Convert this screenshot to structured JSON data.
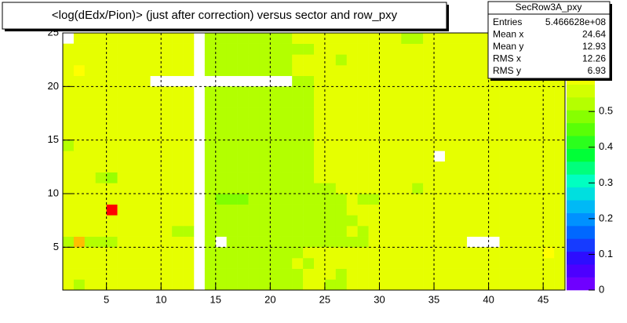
{
  "chart_data": {
    "type": "heatmap",
    "title": "<log(dEdx/Pion)> (just after correction) versus sector and row_pxy",
    "xlim": [
      1,
      47
    ],
    "ylim": [
      1,
      25
    ],
    "zlim": [
      0,
      0.72
    ],
    "xticks": [
      5,
      10,
      15,
      20,
      25,
      30,
      35,
      40,
      45
    ],
    "yticks": [
      5,
      10,
      15,
      20,
      25
    ],
    "zticks": [
      0,
      0.1,
      0.2,
      0.3,
      0.4,
      0.5
    ],
    "grid": true,
    "colormap": [
      {
        "value": 0,
        "color": "#8000ff"
      },
      {
        "value": 0.08,
        "color": "#3300ff"
      },
      {
        "value": 0.16,
        "color": "#0066ff"
      },
      {
        "value": 0.22,
        "color": "#00aaff"
      },
      {
        "value": 0.3,
        "color": "#00ffcc"
      },
      {
        "value": 0.38,
        "color": "#00ff33"
      },
      {
        "value": 0.46,
        "color": "#66ff00"
      },
      {
        "value": 0.52,
        "color": "#b3ff00"
      },
      {
        "value": 0.58,
        "color": "#e6ff00"
      },
      {
        "value": 0.62,
        "color": "#ffff00"
      },
      {
        "value": 0.66,
        "color": "#ffaa00"
      },
      {
        "value": 0.72,
        "color": "#ff0000"
      }
    ],
    "x": [
      1,
      2,
      3,
      4,
      5,
      6,
      7,
      8,
      9,
      10,
      11,
      12,
      13,
      14,
      15,
      16,
      17,
      18,
      19,
      20,
      21,
      22,
      23,
      24,
      25,
      26,
      27,
      28,
      29,
      30,
      31,
      32,
      33,
      34,
      35,
      36,
      37,
      38,
      39,
      40,
      41,
      42,
      43,
      44,
      45,
      46
    ],
    "y": [
      1,
      2,
      3,
      4,
      5,
      6,
      7,
      8,
      9,
      10,
      11,
      12,
      13,
      14,
      15,
      16,
      17,
      18,
      19,
      20,
      21,
      22,
      23,
      24
    ],
    "z": [
      [
        0.58,
        0.52,
        0.58,
        0.58,
        0.58,
        0.58,
        0.58,
        0.58,
        0.58,
        0.58,
        0.58,
        0.58,
        null,
        0.52,
        0.52,
        0.52,
        0.52,
        0.52,
        0.52,
        0.52,
        0.52,
        0.52,
        0.58,
        0.58,
        0.52,
        0.52,
        0.58,
        0.58,
        0.58,
        0.58,
        0.58,
        0.58,
        0.58,
        0.58,
        0.58,
        0.58,
        0.58,
        0.58,
        0.58,
        0.58,
        0.58,
        0.58,
        0.58,
        0.58,
        0.58,
        0.58
      ],
      [
        0.58,
        0.58,
        0.58,
        0.58,
        0.58,
        0.58,
        0.58,
        0.58,
        0.58,
        0.58,
        0.58,
        0.58,
        null,
        0.52,
        0.52,
        0.52,
        0.52,
        0.52,
        0.52,
        0.52,
        0.52,
        0.52,
        0.58,
        0.58,
        0.58,
        0.52,
        0.58,
        0.58,
        0.58,
        0.58,
        0.58,
        0.58,
        0.58,
        0.58,
        0.58,
        0.58,
        0.58,
        0.58,
        0.58,
        0.58,
        0.58,
        0.58,
        0.58,
        0.58,
        0.58,
        0.58
      ],
      [
        0.58,
        0.58,
        0.58,
        0.58,
        0.58,
        0.58,
        0.58,
        0.58,
        0.58,
        0.58,
        0.58,
        0.58,
        null,
        0.52,
        0.52,
        0.52,
        0.52,
        0.52,
        0.52,
        0.52,
        0.52,
        0.58,
        0.52,
        0.58,
        0.58,
        0.58,
        0.58,
        0.58,
        0.58,
        0.58,
        0.58,
        0.58,
        0.58,
        0.58,
        0.58,
        0.58,
        0.58,
        0.58,
        0.58,
        0.58,
        0.58,
        0.58,
        0.58,
        0.58,
        0.58,
        0.58
      ],
      [
        0.58,
        0.58,
        0.58,
        0.58,
        0.58,
        0.58,
        0.58,
        0.58,
        0.58,
        0.58,
        0.58,
        0.58,
        null,
        0.52,
        0.52,
        0.52,
        0.52,
        0.52,
        0.52,
        0.52,
        0.52,
        0.52,
        0.58,
        0.58,
        0.58,
        0.58,
        0.58,
        0.58,
        0.58,
        0.58,
        0.58,
        0.58,
        0.58,
        0.58,
        0.58,
        0.58,
        0.58,
        0.58,
        0.58,
        0.58,
        0.58,
        0.58,
        0.58,
        0.58,
        0.62,
        0.58
      ],
      [
        0.52,
        0.65,
        0.52,
        0.52,
        0.52,
        0.58,
        0.58,
        0.58,
        0.58,
        0.58,
        0.58,
        0.58,
        null,
        0.52,
        null,
        0.52,
        0.52,
        0.52,
        0.52,
        0.52,
        0.52,
        0.52,
        0.52,
        0.52,
        0.52,
        0.52,
        0.52,
        0.52,
        0.58,
        0.58,
        0.58,
        0.58,
        0.58,
        0.58,
        0.58,
        0.58,
        0.58,
        null,
        null,
        null,
        0.58,
        0.58,
        0.58,
        0.58,
        0.58,
        0.58
      ],
      [
        0.58,
        0.58,
        0.58,
        0.58,
        0.58,
        0.58,
        0.58,
        0.58,
        0.58,
        0.58,
        0.52,
        0.52,
        null,
        0.52,
        0.52,
        0.52,
        0.52,
        0.52,
        0.52,
        0.52,
        0.52,
        0.52,
        0.52,
        0.52,
        0.52,
        0.52,
        0.58,
        0.52,
        0.58,
        0.58,
        0.58,
        0.58,
        0.58,
        0.58,
        0.58,
        0.58,
        0.58,
        0.58,
        0.58,
        0.58,
        0.58,
        0.58,
        0.58,
        0.58,
        0.58,
        0.58
      ],
      [
        0.58,
        0.58,
        0.58,
        0.58,
        0.58,
        0.58,
        0.58,
        0.58,
        0.58,
        0.58,
        0.58,
        0.58,
        null,
        0.52,
        0.52,
        0.52,
        0.52,
        0.52,
        0.52,
        0.52,
        0.52,
        0.52,
        0.52,
        0.52,
        0.52,
        0.52,
        0.52,
        0.58,
        0.58,
        0.58,
        0.58,
        0.58,
        0.58,
        0.58,
        0.58,
        0.58,
        0.58,
        0.58,
        0.58,
        0.58,
        0.58,
        0.58,
        0.58,
        0.58,
        0.58,
        0.58
      ],
      [
        0.58,
        0.58,
        0.58,
        0.58,
        0.72,
        0.58,
        0.58,
        0.58,
        0.58,
        0.58,
        0.58,
        0.58,
        null,
        0.52,
        0.52,
        0.52,
        0.52,
        0.52,
        0.52,
        0.52,
        0.52,
        0.52,
        0.52,
        0.52,
        0.52,
        0.52,
        0.58,
        0.58,
        0.58,
        0.58,
        0.58,
        0.58,
        0.58,
        0.58,
        0.58,
        0.58,
        0.58,
        0.58,
        0.58,
        0.58,
        0.58,
        0.58,
        0.58,
        0.58,
        0.58,
        0.58
      ],
      [
        0.58,
        0.58,
        0.58,
        0.58,
        0.58,
        0.58,
        0.58,
        0.58,
        0.58,
        0.58,
        0.58,
        0.58,
        null,
        0.52,
        0.48,
        0.48,
        0.48,
        0.52,
        0.52,
        0.52,
        0.52,
        0.52,
        0.52,
        0.52,
        0.52,
        0.52,
        0.58,
        0.52,
        0.52,
        0.58,
        0.58,
        0.58,
        0.58,
        0.58,
        0.58,
        0.58,
        0.58,
        0.58,
        0.58,
        0.58,
        0.58,
        0.58,
        0.58,
        0.58,
        0.58,
        0.58
      ],
      [
        0.58,
        0.58,
        0.58,
        0.58,
        0.58,
        0.58,
        0.58,
        0.58,
        0.58,
        0.58,
        0.58,
        0.58,
        null,
        0.52,
        0.52,
        0.52,
        0.52,
        0.52,
        0.52,
        0.52,
        0.52,
        0.52,
        0.52,
        0.52,
        0.52,
        0.58,
        0.58,
        0.58,
        0.58,
        0.58,
        0.58,
        0.58,
        0.52,
        0.58,
        0.58,
        0.58,
        0.58,
        0.58,
        0.58,
        0.58,
        0.58,
        0.58,
        0.58,
        0.58,
        0.58,
        0.58
      ],
      [
        0.58,
        0.58,
        0.58,
        0.52,
        0.5,
        0.58,
        0.58,
        0.58,
        0.58,
        0.58,
        0.58,
        0.58,
        null,
        0.52,
        0.52,
        0.52,
        0.52,
        0.52,
        0.52,
        0.52,
        0.52,
        0.52,
        0.52,
        0.58,
        0.58,
        0.58,
        0.58,
        0.58,
        0.58,
        0.58,
        0.58,
        0.58,
        0.58,
        0.58,
        0.58,
        0.58,
        0.58,
        0.58,
        0.58,
        0.58,
        0.58,
        0.58,
        0.58,
        0.58,
        0.58,
        0.58
      ],
      [
        0.58,
        0.58,
        0.58,
        0.58,
        0.58,
        0.58,
        0.58,
        0.58,
        0.58,
        0.58,
        0.58,
        0.58,
        null,
        0.52,
        0.52,
        0.52,
        0.52,
        0.52,
        0.52,
        0.52,
        0.52,
        0.52,
        0.52,
        0.58,
        0.58,
        0.58,
        0.58,
        0.58,
        0.58,
        0.58,
        0.58,
        0.58,
        0.58,
        0.58,
        0.58,
        0.58,
        0.58,
        0.58,
        0.58,
        0.58,
        0.58,
        0.58,
        0.58,
        0.58,
        0.58,
        0.58
      ],
      [
        0.58,
        0.58,
        0.58,
        0.58,
        0.58,
        0.58,
        0.58,
        0.58,
        0.58,
        0.58,
        0.58,
        0.58,
        null,
        0.52,
        0.52,
        0.52,
        0.52,
        0.52,
        0.52,
        0.52,
        0.52,
        0.52,
        0.52,
        0.58,
        0.58,
        0.58,
        0.58,
        0.58,
        0.58,
        0.58,
        0.58,
        0.58,
        0.58,
        0.58,
        null,
        0.58,
        0.58,
        0.58,
        0.58,
        0.58,
        0.58,
        0.58,
        0.58,
        0.58,
        0.58,
        0.58
      ],
      [
        0.52,
        0.58,
        0.58,
        0.58,
        0.58,
        0.58,
        0.58,
        0.58,
        0.58,
        0.58,
        0.58,
        0.58,
        null,
        0.52,
        0.52,
        0.52,
        0.52,
        0.52,
        0.52,
        0.52,
        0.52,
        0.52,
        0.52,
        0.58,
        0.58,
        0.58,
        0.58,
        0.58,
        0.58,
        0.58,
        0.58,
        0.58,
        0.58,
        0.58,
        0.58,
        0.58,
        0.58,
        0.58,
        0.58,
        0.58,
        0.58,
        0.58,
        0.58,
        0.58,
        0.58,
        0.58
      ],
      [
        0.58,
        0.58,
        0.58,
        0.58,
        0.58,
        0.58,
        0.58,
        0.58,
        0.58,
        0.58,
        0.58,
        0.58,
        null,
        0.52,
        0.52,
        0.52,
        0.52,
        0.52,
        0.52,
        0.52,
        0.52,
        0.52,
        0.52,
        0.58,
        0.58,
        0.58,
        0.58,
        0.58,
        0.58,
        0.58,
        0.58,
        0.58,
        0.58,
        0.58,
        0.58,
        0.58,
        0.58,
        0.58,
        0.58,
        0.58,
        0.58,
        0.58,
        0.58,
        0.58,
        0.58,
        0.58
      ],
      [
        0.58,
        0.58,
        0.58,
        0.58,
        0.58,
        0.58,
        0.58,
        0.58,
        0.58,
        0.58,
        0.58,
        0.58,
        null,
        0.52,
        0.52,
        0.52,
        0.52,
        0.52,
        0.52,
        0.52,
        0.52,
        0.52,
        0.52,
        0.58,
        0.58,
        0.58,
        0.58,
        0.58,
        0.58,
        0.58,
        0.58,
        0.58,
        0.58,
        0.58,
        0.58,
        0.58,
        0.58,
        0.58,
        0.58,
        0.58,
        0.58,
        0.58,
        0.58,
        0.58,
        0.58,
        0.58
      ],
      [
        0.58,
        0.58,
        0.58,
        0.58,
        0.58,
        0.58,
        0.58,
        0.58,
        0.58,
        0.58,
        0.58,
        0.58,
        null,
        0.52,
        0.52,
        0.52,
        0.52,
        0.52,
        0.52,
        0.52,
        0.52,
        0.52,
        0.52,
        0.58,
        0.58,
        0.58,
        0.58,
        0.58,
        0.58,
        0.58,
        0.58,
        0.58,
        0.58,
        0.58,
        0.58,
        0.58,
        0.58,
        0.58,
        0.58,
        0.58,
        0.58,
        0.58,
        0.58,
        0.58,
        0.58,
        0.58
      ],
      [
        0.58,
        0.58,
        0.58,
        0.58,
        0.58,
        0.58,
        0.58,
        0.58,
        0.58,
        0.58,
        0.58,
        0.58,
        null,
        0.52,
        0.52,
        0.52,
        0.52,
        0.52,
        0.52,
        0.52,
        0.52,
        0.52,
        0.52,
        0.58,
        0.58,
        0.58,
        0.58,
        0.58,
        0.58,
        0.58,
        0.58,
        0.58,
        0.58,
        0.58,
        0.58,
        0.58,
        0.58,
        0.58,
        0.58,
        0.58,
        0.58,
        0.58,
        0.58,
        0.58,
        0.58,
        0.58
      ],
      [
        0.58,
        0.58,
        0.58,
        0.58,
        0.58,
        0.58,
        0.58,
        0.58,
        0.58,
        0.58,
        0.58,
        0.58,
        null,
        0.52,
        0.52,
        0.52,
        0.52,
        0.52,
        0.52,
        0.52,
        0.52,
        0.52,
        0.52,
        0.58,
        0.58,
        0.58,
        0.58,
        0.58,
        0.58,
        0.58,
        0.58,
        0.58,
        0.58,
        0.58,
        0.58,
        0.58,
        0.58,
        0.58,
        0.58,
        0.58,
        0.58,
        0.58,
        0.58,
        0.58,
        0.58,
        0.58
      ],
      [
        0.58,
        0.58,
        0.58,
        0.58,
        0.58,
        0.58,
        0.58,
        0.58,
        null,
        null,
        null,
        null,
        null,
        null,
        null,
        null,
        null,
        null,
        null,
        null,
        null,
        0.52,
        0.52,
        0.58,
        0.58,
        0.58,
        0.58,
        0.58,
        0.58,
        0.58,
        0.58,
        0.58,
        0.58,
        0.58,
        0.58,
        0.58,
        0.58,
        0.58,
        0.58,
        0.58,
        0.58,
        0.58,
        0.58,
        0.58,
        0.58,
        0.58
      ],
      [
        0.58,
        0.62,
        0.58,
        0.58,
        0.58,
        0.58,
        0.58,
        0.58,
        0.58,
        0.58,
        0.58,
        0.58,
        null,
        0.52,
        0.52,
        0.52,
        0.52,
        0.52,
        0.52,
        0.52,
        0.52,
        0.58,
        0.58,
        0.58,
        0.58,
        0.58,
        0.58,
        0.58,
        0.58,
        0.58,
        0.58,
        0.58,
        0.58,
        0.58,
        0.58,
        0.58,
        0.58,
        0.58,
        0.58,
        0.58,
        0.58,
        0.58,
        0.58,
        0.58,
        0.58,
        0.58
      ],
      [
        0.58,
        0.58,
        0.58,
        0.58,
        0.58,
        0.58,
        0.58,
        0.58,
        0.58,
        0.58,
        0.58,
        0.58,
        null,
        0.52,
        0.52,
        0.52,
        0.52,
        0.52,
        0.52,
        0.52,
        0.52,
        0.58,
        0.58,
        0.58,
        0.58,
        0.52,
        0.58,
        0.58,
        0.58,
        0.58,
        0.58,
        0.58,
        0.58,
        0.58,
        0.58,
        0.58,
        0.58,
        0.58,
        0.58,
        0.58,
        0.58,
        0.58,
        0.58,
        0.58,
        0.58,
        0.58
      ],
      [
        0.58,
        0.58,
        0.58,
        0.58,
        0.58,
        0.58,
        0.58,
        0.58,
        0.58,
        0.58,
        0.58,
        0.58,
        null,
        0.52,
        0.52,
        0.52,
        0.52,
        0.52,
        0.52,
        0.52,
        0.52,
        0.52,
        0.52,
        0.58,
        0.58,
        0.58,
        0.58,
        0.58,
        0.58,
        0.58,
        0.58,
        0.58,
        0.58,
        0.58,
        0.58,
        0.58,
        0.58,
        0.58,
        0.58,
        0.58,
        0.58,
        0.58,
        0.58,
        0.58,
        0.58,
        0.58
      ],
      [
        null,
        0.58,
        0.58,
        0.58,
        0.58,
        0.58,
        0.58,
        0.58,
        0.58,
        0.58,
        0.58,
        0.58,
        null,
        0.52,
        0.52,
        0.52,
        0.52,
        0.52,
        0.52,
        0.52,
        0.52,
        0.58,
        0.58,
        0.58,
        0.58,
        0.58,
        0.58,
        0.58,
        0.58,
        0.58,
        0.58,
        0.52,
        0.52,
        0.58,
        0.58,
        0.58,
        0.58,
        0.58,
        0.58,
        0.58,
        0.58,
        0.58,
        0.58,
        0.58,
        0.58,
        0.58
      ]
    ],
    "stats": {
      "title": "SecRow3A_pxy",
      "rows": [
        [
          "Entries",
          {
            "value": 546662800,
            "label": "5.466628e+08"
          }
        ],
        [
          "Mean x",
          24.64
        ],
        [
          "Mean y",
          12.93
        ],
        [
          "RMS x",
          12.26
        ],
        [
          "RMS y",
          6.93
        ]
      ]
    }
  }
}
